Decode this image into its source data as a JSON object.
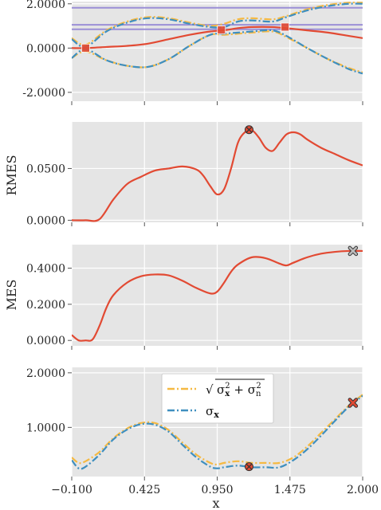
{
  "chart_data": [
    {
      "type": "line",
      "panel": "top",
      "xlim": [
        -0.1,
        2.0
      ],
      "ylim": [
        -2.4,
        2.1
      ],
      "yticks": [
        -2.0,
        0.0,
        2.0
      ],
      "ytick_labels": [
        "-2.0000",
        "0.0000",
        "2.0000"
      ],
      "ylabel": "",
      "grid": true,
      "hlines": [
        {
          "y": 1.82,
          "color": "#9b8fd6"
        },
        {
          "y": 1.05,
          "color": "#9b8fd6"
        },
        {
          "y": 0.85,
          "color": "#9b8fd6"
        }
      ],
      "series": [
        {
          "style": "dashdot",
          "color": "#f5b942",
          "x": [
            -0.1,
            0.0,
            0.15,
            0.3,
            0.45,
            0.6,
            0.75,
            0.9,
            1.0,
            1.1,
            1.2,
            1.35,
            1.45,
            1.6,
            1.75,
            1.9,
            2.0
          ],
          "y": [
            0.45,
            0.15,
            0.8,
            1.2,
            1.4,
            1.35,
            1.15,
            1.0,
            1.1,
            1.3,
            1.35,
            1.3,
            1.45,
            1.75,
            1.95,
            2.05,
            2.05
          ]
        },
        {
          "style": "dashdot",
          "color": "#f5b942",
          "x": [
            -0.1,
            0.0,
            0.15,
            0.3,
            0.45,
            0.6,
            0.75,
            0.9,
            1.0,
            1.1,
            1.2,
            1.35,
            1.45,
            1.6,
            1.75,
            1.9,
            2.0
          ],
          "y": [
            -0.45,
            -0.15,
            -0.55,
            -0.8,
            -0.85,
            -0.5,
            0.1,
            0.6,
            0.6,
            0.65,
            0.7,
            0.75,
            0.5,
            0.0,
            -0.5,
            -0.9,
            -1.1
          ]
        },
        {
          "style": "dashdot",
          "color": "#3f8fbf",
          "x": [
            -0.1,
            0.0,
            0.15,
            0.3,
            0.45,
            0.6,
            0.75,
            0.9,
            1.0,
            1.1,
            1.2,
            1.35,
            1.45,
            1.6,
            1.75,
            1.9,
            2.0
          ],
          "y": [
            0.4,
            0.05,
            0.75,
            1.15,
            1.35,
            1.3,
            1.1,
            0.95,
            0.95,
            1.2,
            1.25,
            1.2,
            1.4,
            1.7,
            1.9,
            2.0,
            2.0
          ]
        },
        {
          "style": "dashdot",
          "color": "#3f8fbf",
          "x": [
            -0.1,
            0.0,
            0.15,
            0.3,
            0.45,
            0.6,
            0.75,
            0.9,
            1.0,
            1.1,
            1.2,
            1.35,
            1.45,
            1.6,
            1.75,
            1.9,
            2.0
          ],
          "y": [
            -0.45,
            -0.05,
            -0.55,
            -0.8,
            -0.85,
            -0.5,
            0.1,
            0.6,
            0.65,
            0.7,
            0.75,
            0.8,
            0.55,
            0.0,
            -0.5,
            -0.95,
            -1.15
          ]
        },
        {
          "style": "solid",
          "color": "#e24a33",
          "x": [
            -0.1,
            0.0,
            0.15,
            0.3,
            0.45,
            0.6,
            0.75,
            0.9,
            1.0,
            1.1,
            1.2,
            1.35,
            1.45,
            1.6,
            1.75,
            1.9,
            2.0
          ],
          "y": [
            0.0,
            0.0,
            0.05,
            0.1,
            0.2,
            0.4,
            0.6,
            0.75,
            0.8,
            0.9,
            0.95,
            0.95,
            0.9,
            0.8,
            0.7,
            0.55,
            0.45
          ]
        }
      ],
      "markers": [
        {
          "x": 0.0,
          "y": 0.0,
          "shape": "square",
          "color": "#e24a33"
        },
        {
          "x": 0.98,
          "y": 0.82,
          "shape": "square",
          "color": "#e24a33"
        },
        {
          "x": 1.44,
          "y": 0.95,
          "shape": "square",
          "color": "#e24a33"
        }
      ]
    },
    {
      "type": "line",
      "panel": "rmes",
      "xlim": [
        -0.1,
        2.0
      ],
      "ylim": [
        -0.002,
        0.095
      ],
      "yticks": [
        0.0,
        0.05
      ],
      "ytick_labels": [
        "0.0000",
        "0.0500"
      ],
      "ylabel": "RMES",
      "grid": true,
      "series": [
        {
          "style": "solid",
          "color": "#e24a33",
          "x": [
            -0.1,
            0.0,
            0.1,
            0.2,
            0.3,
            0.4,
            0.5,
            0.6,
            0.7,
            0.8,
            0.85,
            0.9,
            0.95,
            1.0,
            1.05,
            1.1,
            1.15,
            1.2,
            1.25,
            1.3,
            1.35,
            1.4,
            1.45,
            1.5,
            1.55,
            1.6,
            1.7,
            1.8,
            1.9,
            2.0
          ],
          "y": [
            0.0,
            0.0,
            0.001,
            0.02,
            0.035,
            0.042,
            0.048,
            0.05,
            0.052,
            0.049,
            0.043,
            0.033,
            0.025,
            0.03,
            0.05,
            0.075,
            0.085,
            0.087,
            0.08,
            0.07,
            0.067,
            0.075,
            0.083,
            0.085,
            0.083,
            0.078,
            0.07,
            0.064,
            0.058,
            0.053
          ]
        }
      ],
      "markers": [
        {
          "x": 1.18,
          "y": 0.0875,
          "shape": "circle-x",
          "color": "#e24a33"
        }
      ]
    },
    {
      "type": "line",
      "panel": "mes",
      "xlim": [
        -0.1,
        2.0
      ],
      "ylim": [
        -0.03,
        0.53
      ],
      "yticks": [
        0.0,
        0.2,
        0.4
      ],
      "ytick_labels": [
        "0.0000",
        "0.2000",
        "0.4000"
      ],
      "ylabel": "MES",
      "grid": true,
      "series": [
        {
          "style": "solid",
          "color": "#e24a33",
          "x": [
            -0.1,
            -0.05,
            0.0,
            0.05,
            0.1,
            0.15,
            0.2,
            0.3,
            0.4,
            0.5,
            0.6,
            0.7,
            0.8,
            0.9,
            0.95,
            1.0,
            1.05,
            1.1,
            1.2,
            1.3,
            1.4,
            1.45,
            1.5,
            1.6,
            1.7,
            1.8,
            1.9,
            2.0
          ],
          "y": [
            0.03,
            0.0,
            0.0,
            0.005,
            0.08,
            0.18,
            0.25,
            0.32,
            0.355,
            0.365,
            0.36,
            0.33,
            0.29,
            0.26,
            0.27,
            0.32,
            0.38,
            0.42,
            0.46,
            0.455,
            0.425,
            0.415,
            0.43,
            0.46,
            0.48,
            0.49,
            0.495,
            0.495
          ]
        }
      ],
      "markers": [
        {
          "x": 1.93,
          "y": 0.495,
          "shape": "x",
          "color": "#bbbbbb"
        }
      ]
    },
    {
      "type": "line",
      "panel": "sigma",
      "xlim": [
        -0.1,
        2.0
      ],
      "ylim": [
        0.1,
        2.1
      ],
      "yticks": [
        1.0,
        2.0
      ],
      "ytick_labels": [
        "1.0000",
        "2.0000"
      ],
      "xticks": [
        -0.1,
        0.425,
        0.95,
        1.475,
        2.0
      ],
      "xtick_labels": [
        "−0.100",
        "0.425",
        "0.950",
        "1.475",
        "2.000"
      ],
      "xlabel": "x",
      "ylabel": "",
      "grid": true,
      "legend": {
        "placement": "upper-center",
        "entries": [
          "sqrt_sigma_x2_sigma_n2",
          "sigma_x"
        ]
      },
      "series": [
        {
          "name": "√(σx² + σn²)",
          "legend_key": "sqrt_sigma_x2_sigma_n2",
          "style": "dashdot",
          "color": "#f5b942",
          "x": [
            -0.1,
            -0.05,
            0.0,
            0.1,
            0.2,
            0.3,
            0.4,
            0.5,
            0.6,
            0.7,
            0.8,
            0.9,
            0.95,
            1.0,
            1.1,
            1.2,
            1.3,
            1.4,
            1.5,
            1.6,
            1.7,
            1.8,
            1.9,
            2.0
          ],
          "y": [
            0.45,
            0.35,
            0.38,
            0.55,
            0.8,
            0.98,
            1.08,
            1.08,
            0.95,
            0.72,
            0.5,
            0.35,
            0.32,
            0.35,
            0.38,
            0.35,
            0.35,
            0.35,
            0.45,
            0.65,
            0.9,
            1.15,
            1.4,
            1.6
          ]
        },
        {
          "name": "σx",
          "legend_key": "sigma_x",
          "style": "dashdot",
          "color": "#3f8fbf",
          "x": [
            -0.1,
            -0.05,
            0.0,
            0.1,
            0.2,
            0.3,
            0.4,
            0.5,
            0.6,
            0.7,
            0.8,
            0.9,
            0.95,
            1.0,
            1.1,
            1.2,
            1.3,
            1.4,
            1.5,
            1.6,
            1.7,
            1.8,
            1.9,
            2.0
          ],
          "y": [
            0.4,
            0.25,
            0.28,
            0.5,
            0.78,
            0.96,
            1.06,
            1.05,
            0.92,
            0.68,
            0.45,
            0.28,
            0.25,
            0.27,
            0.3,
            0.27,
            0.27,
            0.27,
            0.4,
            0.6,
            0.85,
            1.12,
            1.38,
            1.58
          ]
        }
      ],
      "markers": [
        {
          "x": 1.18,
          "y": 0.28,
          "shape": "circle-x",
          "color": "#e24a33"
        },
        {
          "x": 1.93,
          "y": 1.45,
          "shape": "x",
          "color": "#e24a33"
        }
      ]
    }
  ]
}
